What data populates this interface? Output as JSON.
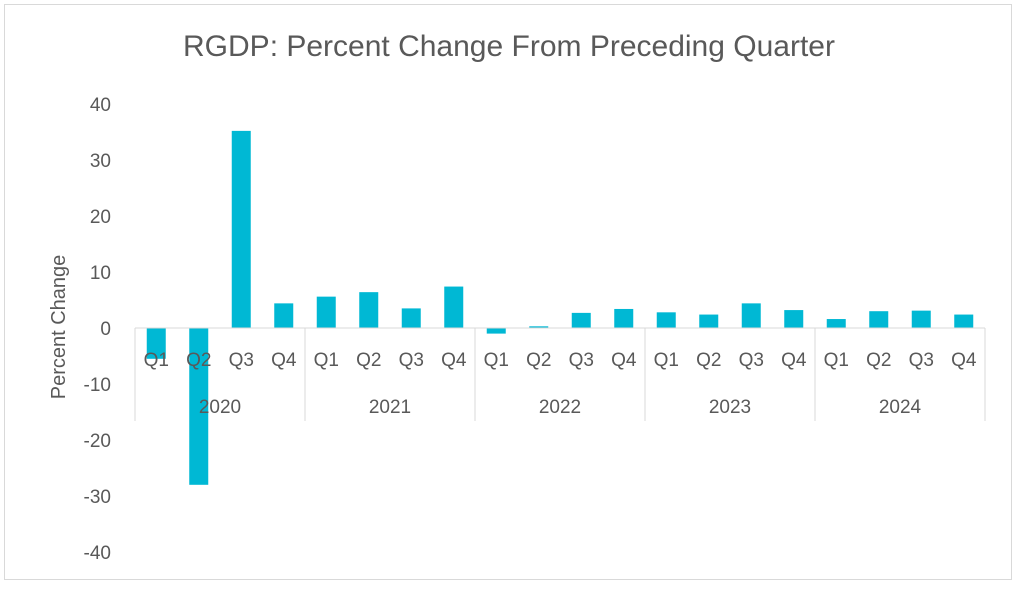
{
  "chart_data": {
    "type": "bar",
    "title": "RGDP: Percent Change From Preceding Quarter",
    "xlabel": "",
    "ylabel": "Percent Change",
    "ylim": [
      -40,
      40
    ],
    "yticks": [
      40,
      30,
      20,
      10,
      0,
      -10,
      -20,
      -30,
      -40
    ],
    "grid": false,
    "legend": "none",
    "bar_color": "#00b8d4",
    "groups": [
      {
        "label": "2020",
        "categories": [
          "Q1",
          "Q2",
          "Q3",
          "Q4"
        ],
        "values": [
          -5.5,
          -28.0,
          35.2,
          4.4
        ]
      },
      {
        "label": "2021",
        "categories": [
          "Q1",
          "Q2",
          "Q3",
          "Q4"
        ],
        "values": [
          5.6,
          6.4,
          3.5,
          7.4
        ]
      },
      {
        "label": "2022",
        "categories": [
          "Q1",
          "Q2",
          "Q3",
          "Q4"
        ],
        "values": [
          -1.0,
          0.3,
          2.7,
          3.4
        ]
      },
      {
        "label": "2023",
        "categories": [
          "Q1",
          "Q2",
          "Q3",
          "Q4"
        ],
        "values": [
          2.8,
          2.4,
          4.4,
          3.2
        ]
      },
      {
        "label": "2024",
        "categories": [
          "Q1",
          "Q2",
          "Q3",
          "Q4"
        ],
        "values": [
          1.6,
          3.0,
          3.1,
          2.4
        ]
      }
    ]
  }
}
